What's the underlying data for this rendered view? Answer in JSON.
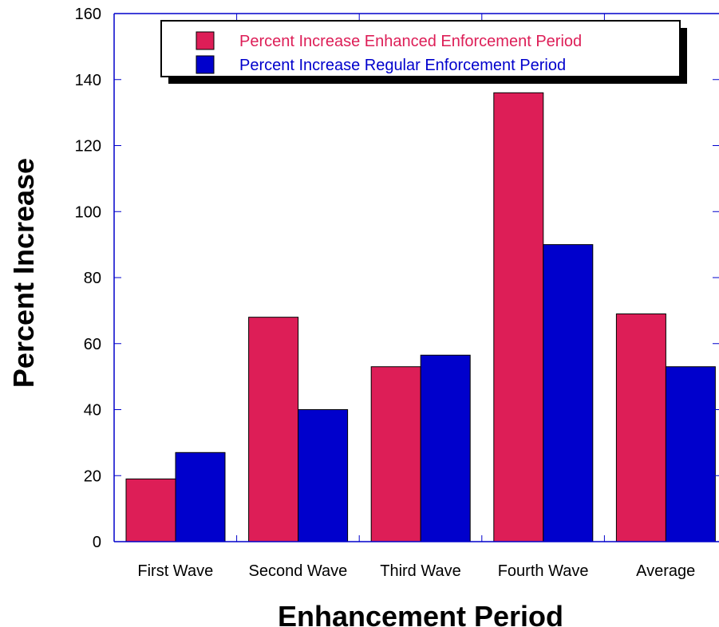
{
  "chart_data": {
    "type": "bar",
    "categories": [
      "First Wave",
      "Second Wave",
      "Third Wave",
      "Fourth Wave",
      "Average"
    ],
    "series": [
      {
        "name": "Percent Increase Enhanced Enforcement Period",
        "color": "#DD1E57",
        "values": [
          19,
          68,
          53,
          136,
          69
        ]
      },
      {
        "name": "Percent Increase Regular Enforcement Period",
        "color": "#0000CC",
        "values": [
          27,
          40,
          56.5,
          90,
          53
        ]
      }
    ],
    "xlabel": "Enhancement Period",
    "ylabel": "Percent Increase",
    "ylim": [
      0,
      160
    ],
    "yticks": [
      0,
      20,
      40,
      60,
      80,
      100,
      120,
      140,
      160
    ],
    "legend_position": "top-right",
    "grid": false,
    "axis_color": "#0000CC"
  }
}
